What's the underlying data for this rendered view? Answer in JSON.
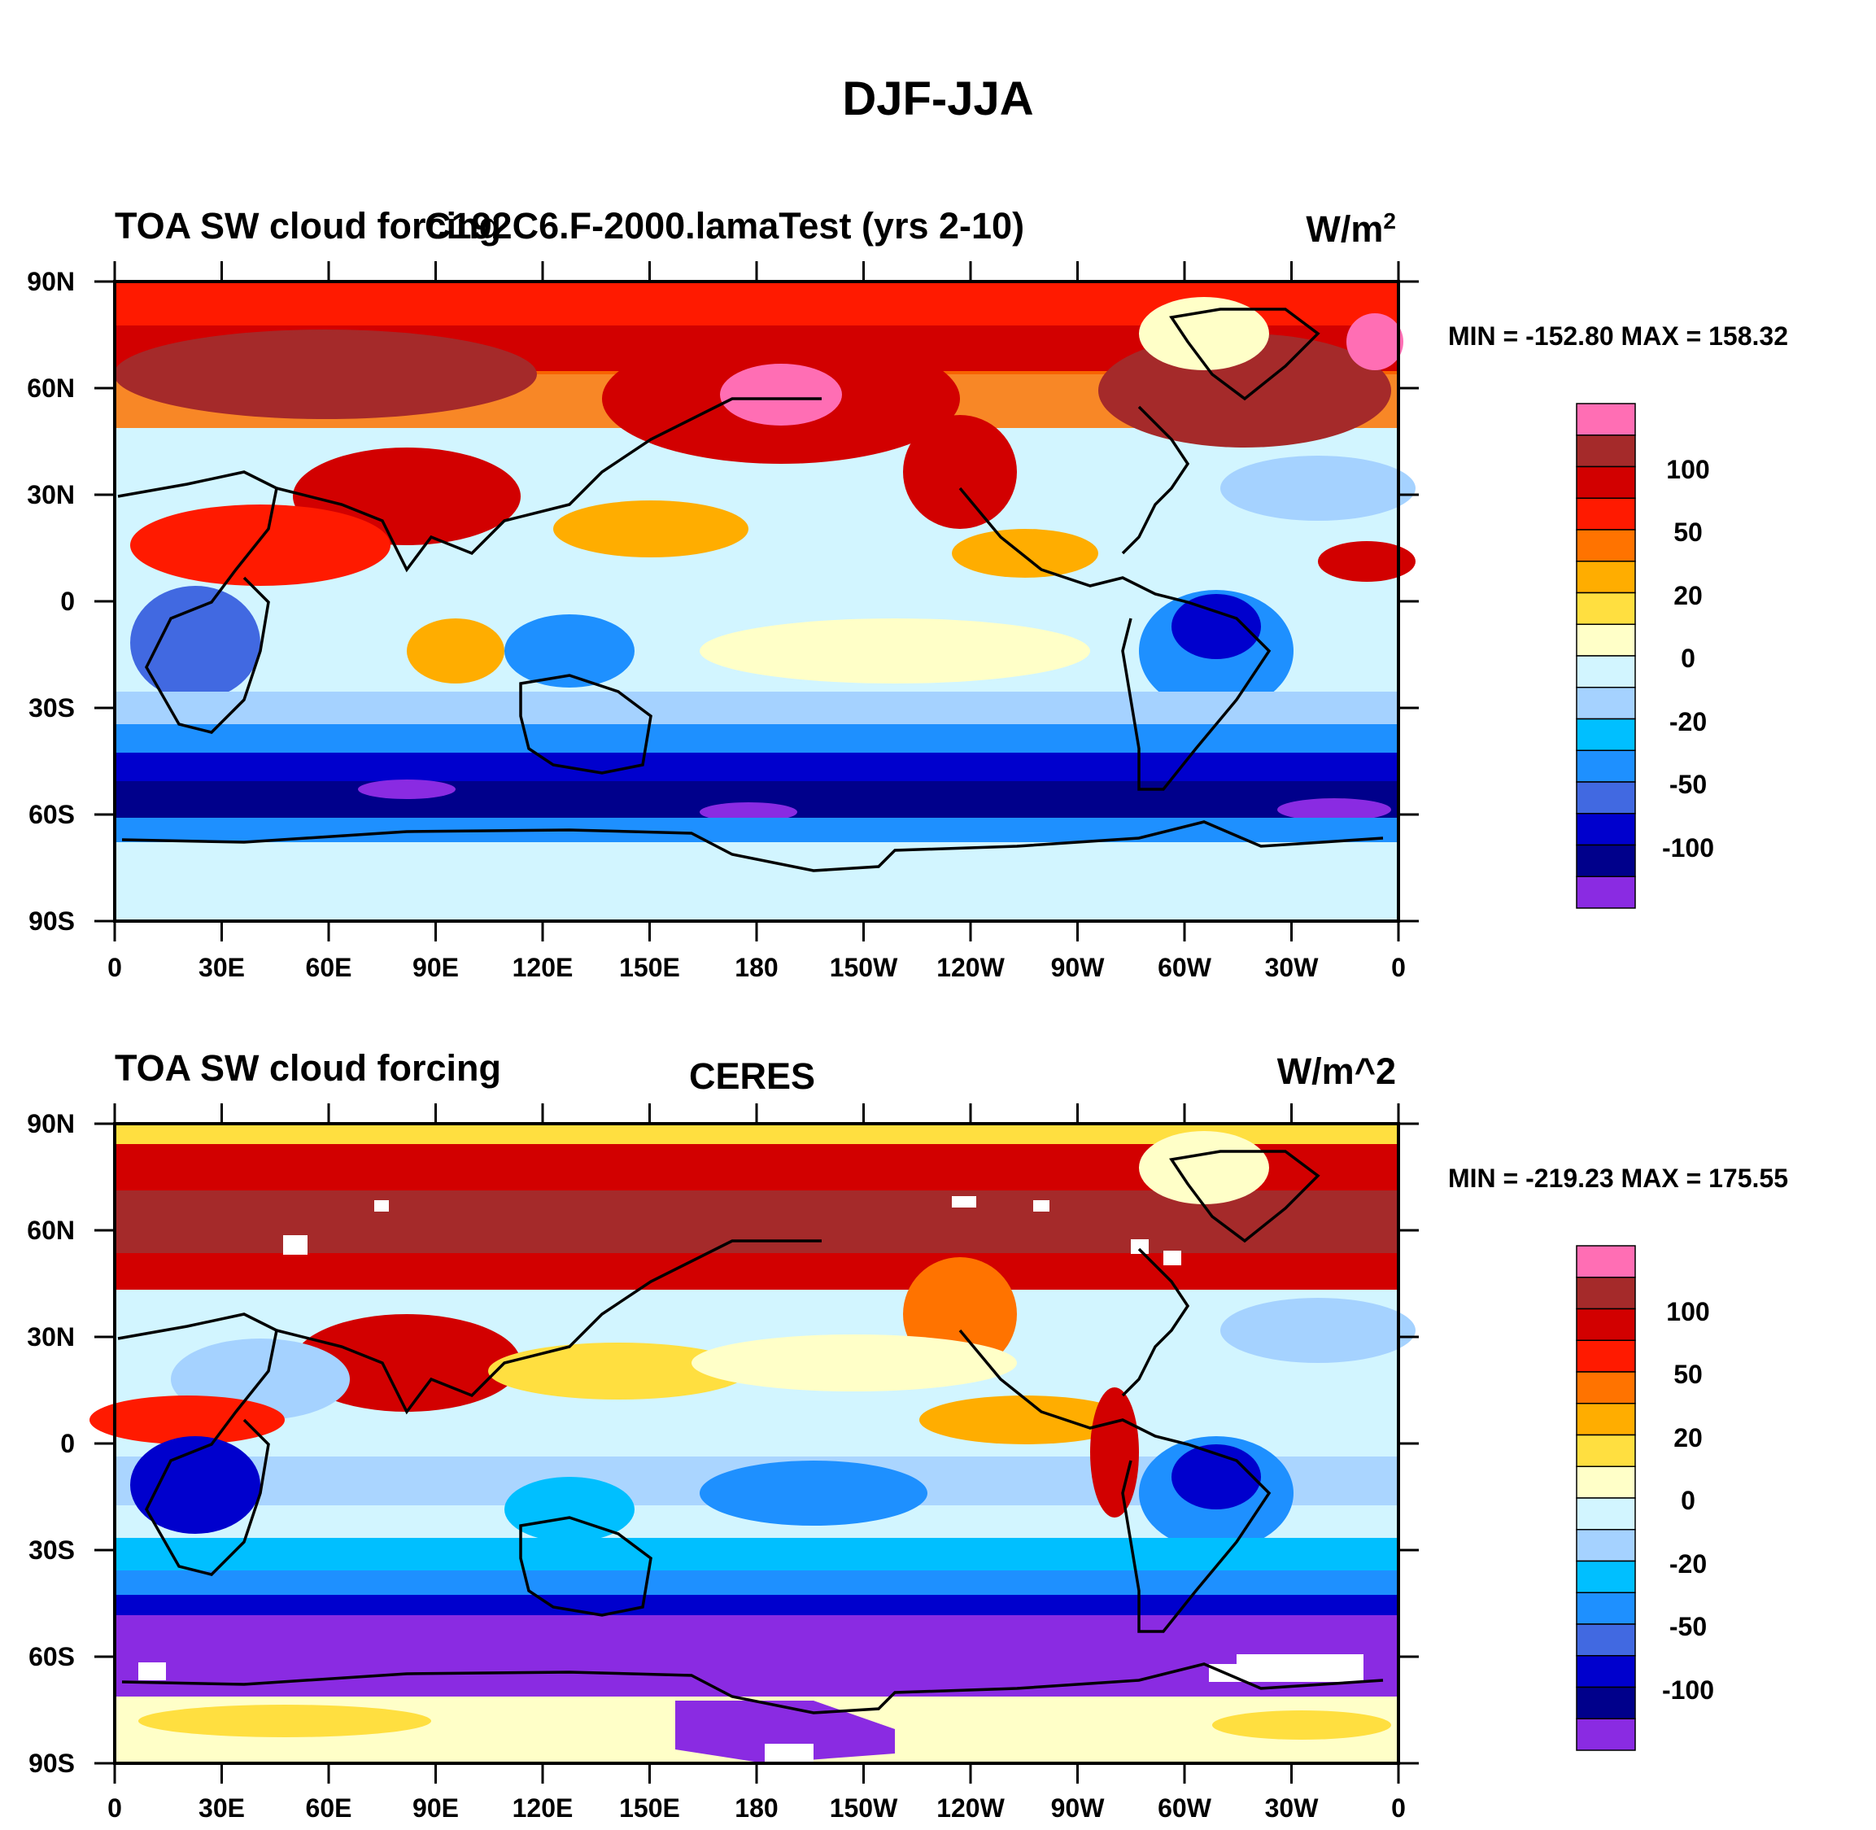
{
  "figure": {
    "title": "DJF-JJA"
  },
  "panels": [
    {
      "left_title": "TOA SW cloud forcing",
      "center_title": "C192C6.F-2000.lamaTest (yrs 2-10)",
      "units": "W/m",
      "units_sup": "2",
      "minmax": "MIN = -152.80 MAX = 158.32"
    },
    {
      "left_title": "TOA SW cloud forcing",
      "center_title": "CERES",
      "units": "W/m^2",
      "units_sup": "",
      "minmax": "MIN = -219.23 MAX = 175.55"
    }
  ],
  "axes": {
    "lat_labels": [
      "90N",
      "60N",
      "30N",
      "0",
      "30S",
      "60S",
      "90S"
    ],
    "lon_labels": [
      "0",
      "30E",
      "60E",
      "90E",
      "120E",
      "150E",
      "180",
      "150W",
      "120W",
      "90W",
      "60W",
      "30W",
      "0"
    ]
  },
  "colorbar": {
    "labels": [
      "100",
      "50",
      "20",
      "0",
      "-20",
      "-50",
      "-100"
    ],
    "colors": [
      "#ff6eb4",
      "#a52a2a",
      "#d20000",
      "#ff1a00",
      "#ff7300",
      "#ffad00",
      "#ffdf40",
      "#ffffc8",
      "#d2f5ff",
      "#a5d2ff",
      "#00bfff",
      "#1e90ff",
      "#4169e1",
      "#0000cd",
      "#00008b",
      "#8a2be2"
    ]
  }
}
